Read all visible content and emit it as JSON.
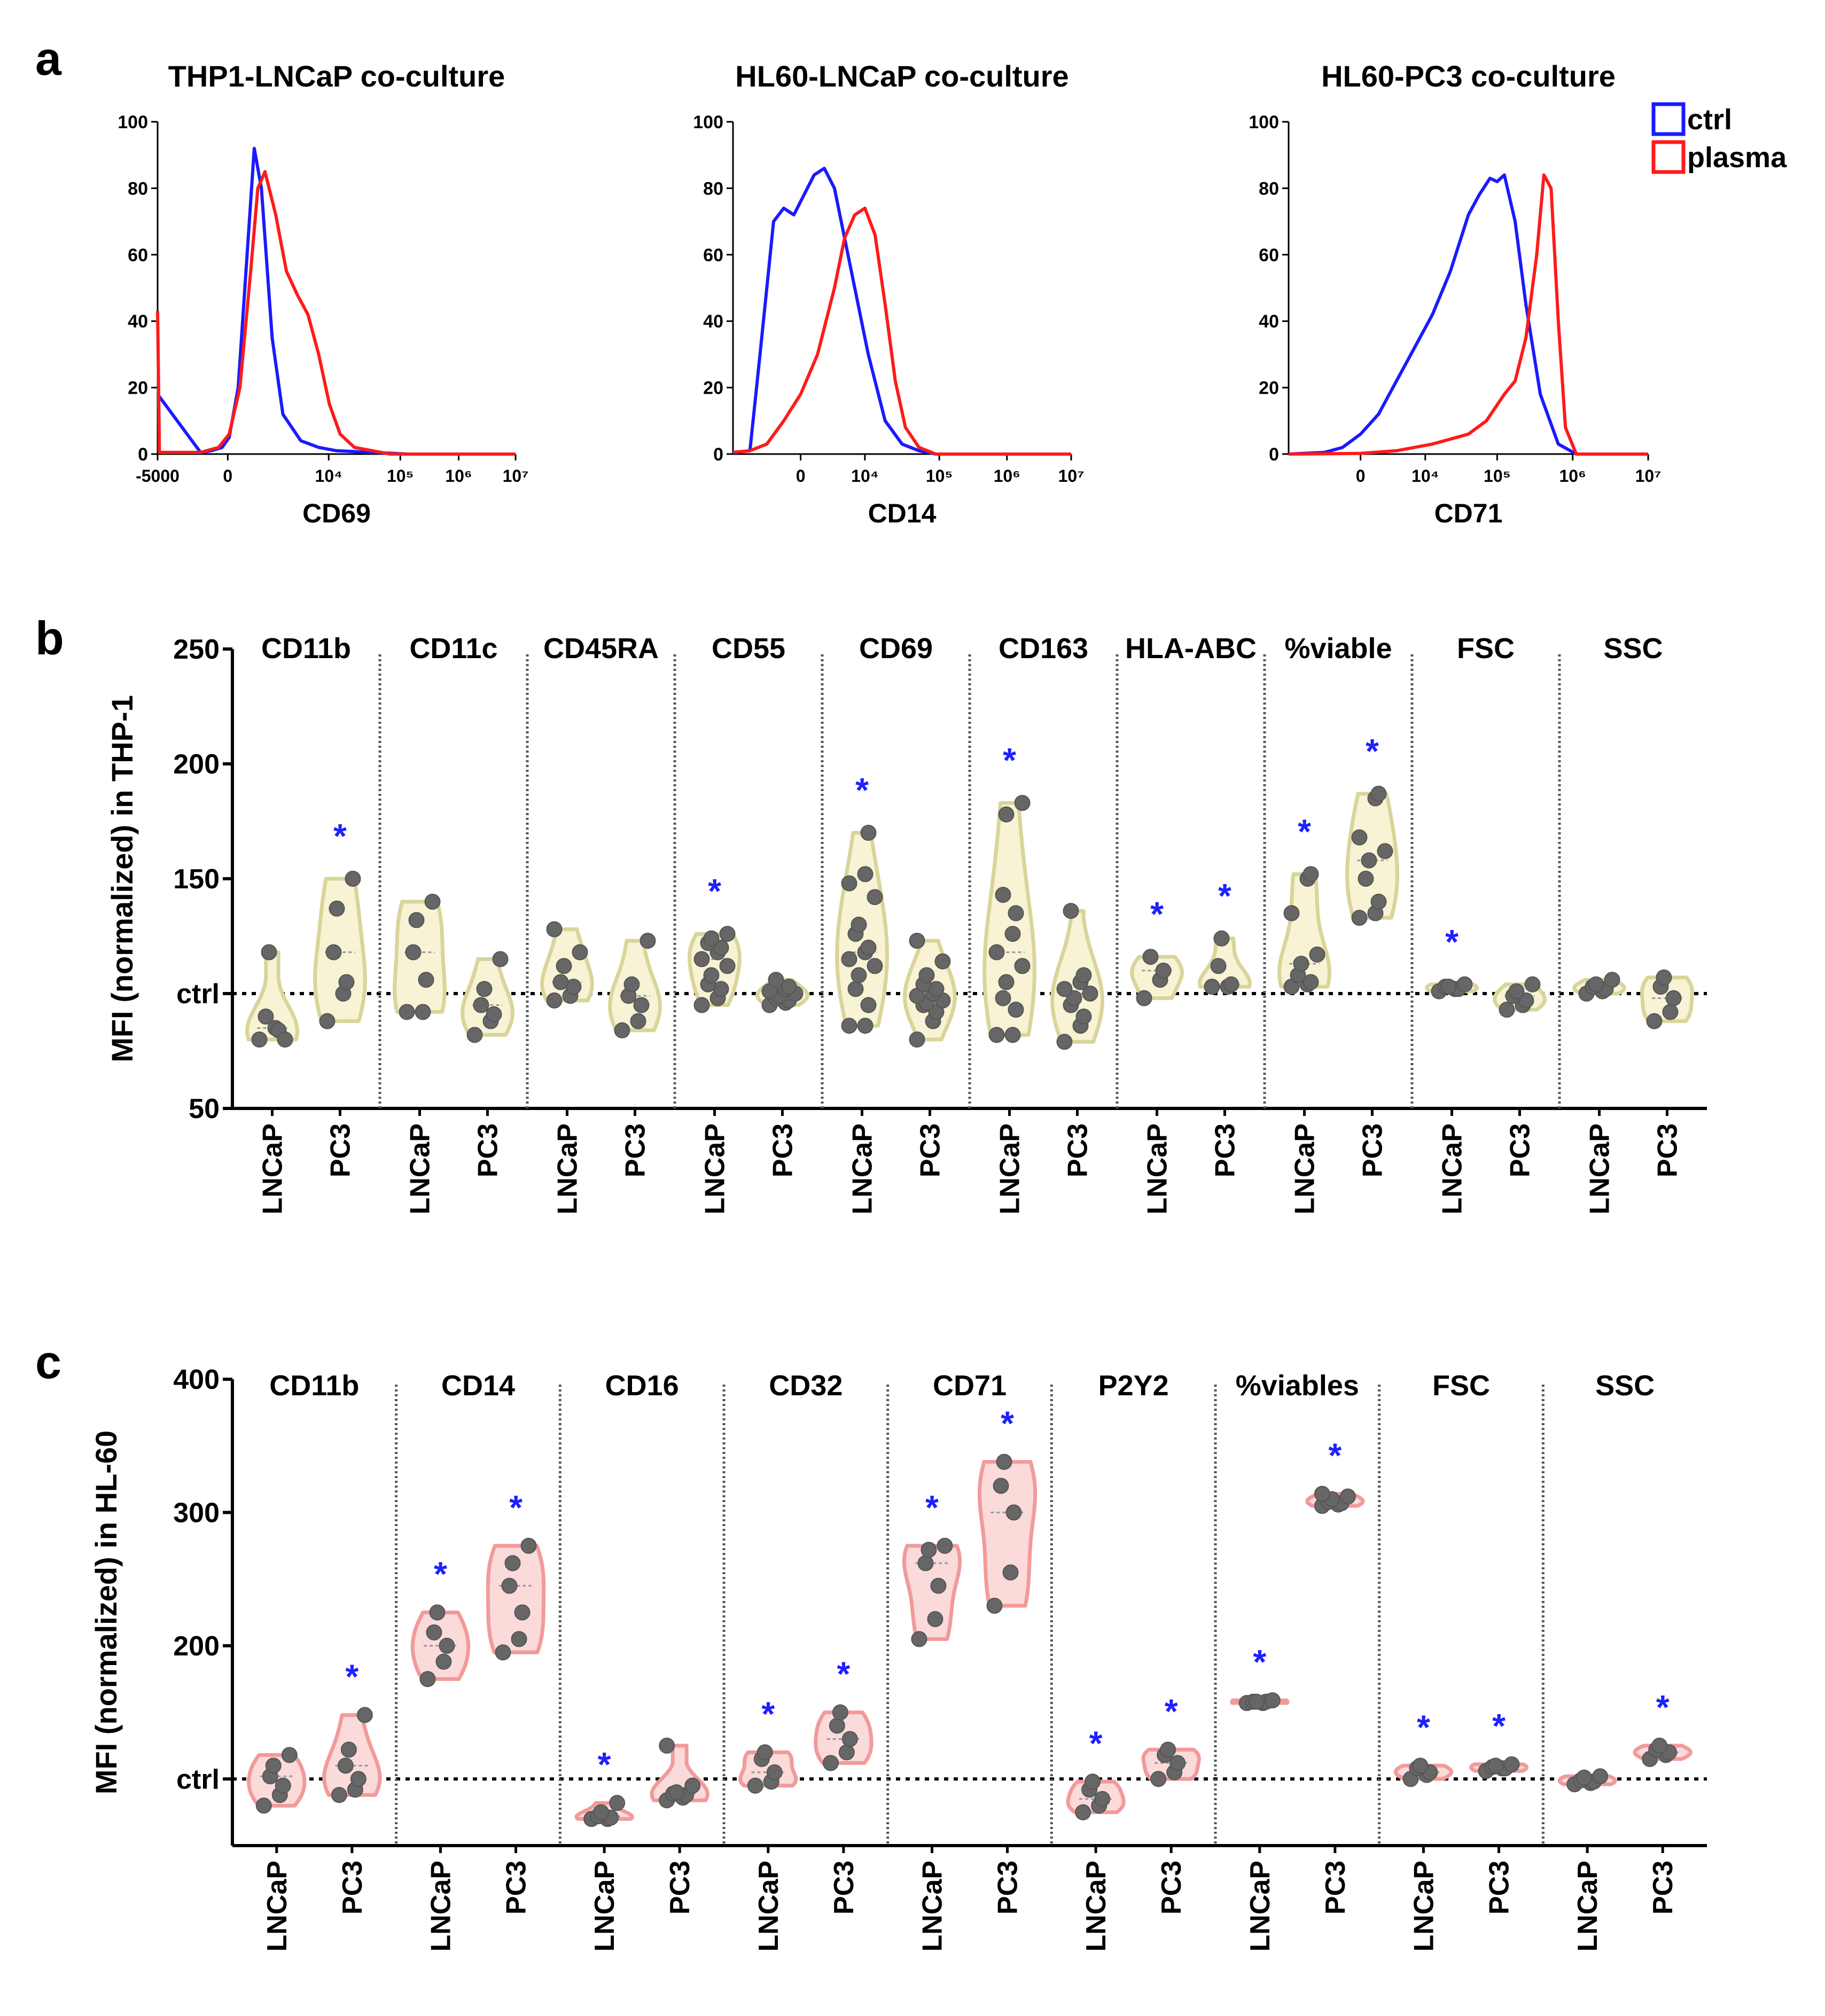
{
  "figure": {
    "panel_letters": [
      "a",
      "b",
      "c"
    ],
    "colors": {
      "ctrl": "#1a1aff",
      "plasma": "#ff1a1a",
      "asterisk": "#1f1fff",
      "point": "#666666",
      "violin_b_fill": "#f7f3d4",
      "violin_b_stroke": "#d9d59a",
      "violin_c_fill": "#fbdada",
      "violin_c_stroke": "#f29a9a"
    }
  },
  "chart_data": [
    {
      "panel": "a",
      "type": "line",
      "subtype": "flow-cytometry histogram",
      "title": "THP1-LNCaP co-culture",
      "xlabel": "CD69",
      "xticks": [
        "-5000",
        "0",
        "10⁴",
        "10⁵",
        "10⁶",
        "10⁷"
      ],
      "yticks": [
        "0",
        "20",
        "40",
        "60",
        "80",
        "100"
      ],
      "ylim": [
        0,
        100
      ],
      "series": [
        {
          "name": "ctrl",
          "x": [
            0.0,
            0.12,
            0.15,
            0.18,
            0.2,
            0.225,
            0.25,
            0.27,
            0.29,
            0.32,
            0.35,
            0.4,
            0.45,
            0.5,
            0.6,
            0.7,
            1.0
          ],
          "y": [
            18,
            0.5,
            1,
            2,
            5,
            20,
            60,
            92,
            80,
            35,
            12,
            4,
            2,
            1,
            0.5,
            0,
            0
          ]
        },
        {
          "name": "plasma",
          "x": [
            0.0,
            0.005,
            0.12,
            0.17,
            0.2,
            0.23,
            0.26,
            0.28,
            0.3,
            0.33,
            0.36,
            0.39,
            0.42,
            0.45,
            0.48,
            0.51,
            0.55,
            0.6,
            0.65,
            1.0
          ],
          "y": [
            43,
            0.5,
            0.5,
            2,
            6,
            20,
            55,
            80,
            85,
            72,
            55,
            48,
            42,
            30,
            15,
            6,
            2,
            1,
            0,
            0
          ]
        }
      ]
    },
    {
      "panel": "a",
      "type": "line",
      "subtype": "flow-cytometry histogram",
      "title": "HL60-LNCaP co-culture",
      "xlabel": "CD14",
      "xticks": [
        "0",
        "10⁴",
        "10⁵",
        "10⁶",
        "10⁷"
      ],
      "yticks": [
        "0",
        "20",
        "40",
        "60",
        "80",
        "100"
      ],
      "ylim": [
        0,
        100
      ],
      "legend": [
        "ctrl",
        "plasma"
      ],
      "series": [
        {
          "name": "ctrl",
          "x": [
            0.0,
            0.05,
            0.08,
            0.12,
            0.15,
            0.18,
            0.21,
            0.24,
            0.27,
            0.3,
            0.33,
            0.36,
            0.4,
            0.45,
            0.5,
            0.55,
            0.6,
            1.0
          ],
          "y": [
            0.5,
            1,
            30,
            70,
            74,
            72,
            78,
            84,
            86,
            80,
            65,
            50,
            30,
            10,
            3,
            1,
            0,
            0
          ]
        },
        {
          "name": "plasma",
          "x": [
            0.0,
            0.05,
            0.1,
            0.15,
            0.2,
            0.25,
            0.3,
            0.33,
            0.36,
            0.39,
            0.42,
            0.45,
            0.48,
            0.51,
            0.55,
            0.6,
            1.0
          ],
          "y": [
            0.5,
            1,
            3,
            10,
            18,
            30,
            50,
            65,
            72,
            74,
            66,
            45,
            22,
            8,
            2,
            0,
            0
          ]
        }
      ]
    },
    {
      "panel": "a",
      "type": "line",
      "subtype": "flow-cytometry histogram",
      "title": "HL60-PC3 co-culture",
      "xlabel": "CD71",
      "xticks": [
        "0",
        "10⁴",
        "10⁵",
        "10⁶",
        "10⁷"
      ],
      "yticks": [
        "0",
        "20",
        "40",
        "60",
        "80",
        "100"
      ],
      "ylim": [
        0,
        100
      ],
      "series": [
        {
          "name": "ctrl",
          "x": [
            0.0,
            0.1,
            0.15,
            0.2,
            0.25,
            0.3,
            0.35,
            0.4,
            0.45,
            0.5,
            0.53,
            0.56,
            0.58,
            0.6,
            0.63,
            0.66,
            0.7,
            0.75,
            0.8,
            1.0
          ],
          "y": [
            0,
            0.5,
            2,
            6,
            12,
            22,
            32,
            42,
            55,
            72,
            78,
            83,
            82,
            84,
            70,
            45,
            18,
            3,
            0,
            0
          ]
        },
        {
          "name": "plasma",
          "x": [
            0.0,
            0.2,
            0.3,
            0.4,
            0.5,
            0.55,
            0.6,
            0.63,
            0.66,
            0.69,
            0.71,
            0.73,
            0.75,
            0.77,
            0.8,
            1.0
          ],
          "y": [
            0,
            0.2,
            1,
            3,
            6,
            10,
            18,
            22,
            35,
            60,
            84,
            80,
            40,
            8,
            0,
            0
          ]
        }
      ]
    },
    {
      "panel": "b",
      "type": "violin",
      "ylabel": "MFI (normalized) in THP-1",
      "ylim": [
        50,
        250
      ],
      "yticks": [
        "50",
        "ctrl",
        "150",
        "200",
        "250"
      ],
      "ctrl_value": 100,
      "categories": [
        "CD11b",
        "CD11c",
        "CD45RA",
        "CD55",
        "CD69",
        "CD163",
        "HLA-ABC",
        "%viable",
        "FSC",
        "SSC"
      ],
      "xticklabels": [
        "LNCaP",
        "PC3"
      ],
      "groups": [
        {
          "label": "CD11b LNCaP",
          "values": [
            80,
            85,
            84,
            90,
            118,
            80
          ],
          "significant": false
        },
        {
          "label": "CD11b PC3",
          "values": [
            88,
            100,
            105,
            118,
            137,
            150
          ],
          "significant": true
        },
        {
          "label": "CD11c LNCaP",
          "values": [
            92,
            92,
            106,
            118,
            132,
            140
          ],
          "significant": false
        },
        {
          "label": "CD11c PC3",
          "values": [
            82,
            88,
            91,
            95,
            102,
            115
          ],
          "significant": false
        },
        {
          "label": "CD45RA LNCaP",
          "values": [
            97,
            99,
            103,
            105,
            112,
            118,
            128
          ],
          "significant": false
        },
        {
          "label": "CD45RA PC3",
          "values": [
            84,
            88,
            95,
            99,
            104,
            123
          ],
          "significant": false
        },
        {
          "label": "CD55 LNCaP",
          "values": [
            95,
            98,
            102,
            104,
            108,
            112,
            115,
            118,
            120,
            122,
            124,
            126
          ],
          "significant": true
        },
        {
          "label": "CD55 PC3",
          "values": [
            95,
            96,
            97,
            98,
            99,
            100,
            101,
            102,
            103,
            106
          ],
          "significant": false
        },
        {
          "label": "CD69 LNCaP",
          "values": [
            86,
            86,
            95,
            102,
            108,
            112,
            115,
            118,
            120,
            126,
            130,
            142,
            148,
            152,
            170
          ],
          "significant": true
        },
        {
          "label": "CD69 PC3",
          "values": [
            80,
            88,
            92,
            95,
            96,
            97,
            99,
            100,
            102,
            104,
            108,
            114,
            123
          ],
          "significant": false
        },
        {
          "label": "CD163 LNCaP",
          "values": [
            82,
            82,
            93,
            98,
            105,
            112,
            118,
            126,
            135,
            143,
            178,
            183
          ],
          "significant": true
        },
        {
          "label": "CD163 PC3",
          "values": [
            79,
            86,
            90,
            95,
            98,
            100,
            102,
            105,
            108,
            136
          ],
          "significant": false
        },
        {
          "label": "HLA-ABC LNCaP",
          "values": [
            98,
            106,
            110,
            116
          ],
          "significant": true
        },
        {
          "label": "HLA-ABC PC3",
          "values": [
            103,
            103,
            104,
            112,
            124
          ],
          "significant": true
        },
        {
          "label": "%viable LNCaP",
          "values": [
            103,
            104,
            105,
            108,
            113,
            117,
            135,
            150,
            152
          ],
          "significant": true
        },
        {
          "label": "%viable PC3",
          "values": [
            133,
            135,
            140,
            150,
            158,
            162,
            168,
            185,
            187
          ],
          "significant": true
        },
        {
          "label": "FSC LNCaP",
          "values": [
            101,
            102,
            102,
            103,
            103,
            104
          ],
          "significant": true
        },
        {
          "label": "FSC PC3",
          "values": [
            93,
            95,
            97,
            99,
            101,
            104
          ],
          "significant": false
        },
        {
          "label": "SSC LNCaP",
          "values": [
            100,
            101,
            102,
            103,
            104,
            106
          ],
          "significant": false
        },
        {
          "label": "SSC PC3",
          "values": [
            88,
            92,
            98,
            103,
            107
          ],
          "significant": false
        }
      ]
    },
    {
      "panel": "c",
      "type": "violin",
      "ylabel": "MFI (normalized) in HL-60",
      "ylim": [
        50,
        400
      ],
      "yticks": [
        "ctrl",
        "200",
        "300",
        "400"
      ],
      "ctrl_value": 100,
      "categories": [
        "CD11b",
        "CD14",
        "CD16",
        "CD32",
        "CD71",
        "P2Y2",
        "%viables",
        "FSC",
        "SSC"
      ],
      "xticklabels": [
        "LNCaP",
        "PC3"
      ],
      "groups": [
        {
          "label": "CD11b LNCaP",
          "values": [
            80,
            88,
            95,
            102,
            110,
            118
          ],
          "significant": false
        },
        {
          "label": "CD11b PC3",
          "values": [
            88,
            92,
            100,
            110,
            122,
            148
          ],
          "significant": true
        },
        {
          "label": "CD14 LNCaP",
          "values": [
            175,
            188,
            200,
            210,
            225
          ],
          "significant": true
        },
        {
          "label": "CD14 PC3",
          "values": [
            195,
            205,
            225,
            245,
            262,
            275
          ],
          "significant": true
        },
        {
          "label": "CD16 LNCaP",
          "values": [
            70,
            70,
            71,
            72,
            75,
            82
          ],
          "significant": true
        },
        {
          "label": "CD16 PC3",
          "values": [
            84,
            86,
            88,
            89,
            90,
            95,
            125
          ],
          "significant": false
        },
        {
          "label": "CD32 LNCaP",
          "values": [
            95,
            98,
            105,
            115,
            120
          ],
          "significant": true
        },
        {
          "label": "CD32 PC3",
          "values": [
            112,
            120,
            130,
            140,
            150
          ],
          "significant": true
        },
        {
          "label": "CD71 LNCaP",
          "values": [
            205,
            220,
            245,
            262,
            272,
            275
          ],
          "significant": true
        },
        {
          "label": "CD71 PC3",
          "values": [
            230,
            255,
            300,
            320,
            338
          ],
          "significant": true
        },
        {
          "label": "P2Y2 LNCaP",
          "values": [
            75,
            80,
            85,
            92,
            98
          ],
          "significant": true
        },
        {
          "label": "P2Y2 PC3",
          "values": [
            100,
            105,
            112,
            118,
            122
          ],
          "significant": true
        },
        {
          "label": "%viables LNCaP",
          "values": [
            157,
            157,
            158,
            158,
            158,
            159
          ],
          "significant": true
        },
        {
          "label": "%viables PC3",
          "values": [
            305,
            306,
            307,
            308,
            310,
            312,
            314
          ],
          "significant": true
        },
        {
          "label": "FSC LNCaP",
          "values": [
            100,
            103,
            105,
            108,
            110
          ],
          "significant": true
        },
        {
          "label": "FSC PC3",
          "values": [
            106,
            108,
            108,
            109,
            110,
            111
          ],
          "significant": true
        },
        {
          "label": "SSC LNCaP",
          "values": [
            96,
            97,
            98,
            99,
            101,
            102
          ],
          "significant": false
        },
        {
          "label": "SSC PC3",
          "values": [
            115,
            118,
            120,
            122,
            125
          ],
          "significant": true
        }
      ]
    }
  ]
}
